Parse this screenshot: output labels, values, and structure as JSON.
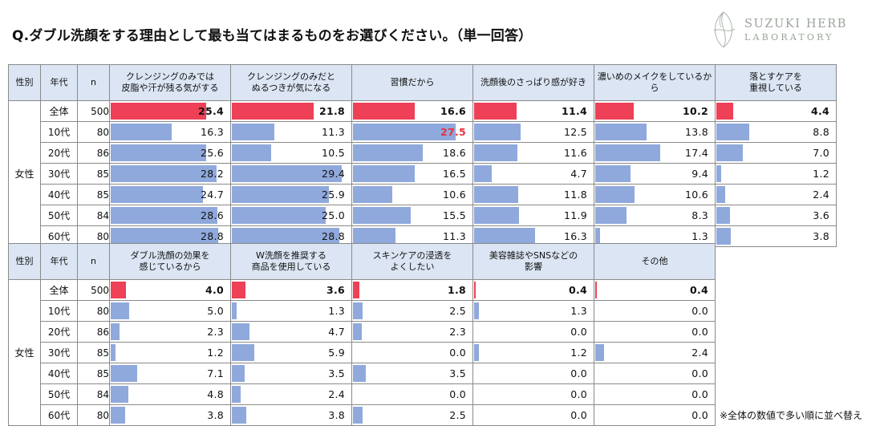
{
  "title": "Q.ダブル洗顔をする理由として最も当てはまるものをお選びください。（単一回答）",
  "logo": {
    "line1": "SUZUKI HERB",
    "line2": "LABORATORY"
  },
  "note": "※全体の数値で多い順に並べ替え",
  "colors": {
    "bar": "#90a9dc",
    "total_bar": "#ee4057",
    "highlight": "#e8303f",
    "header_bg": "#dbe5f3"
  },
  "headers": {
    "sex": "性別",
    "age": "年代",
    "n": "n"
  },
  "group_label": "女性",
  "chart_data": [
    {
      "type": "table",
      "title": "Q.ダブル洗顔をする理由として最も当てはまるものをお選びください。（単一回答）",
      "categories": [
        "全体",
        "10代",
        "20代",
        "30代",
        "40代",
        "50代",
        "60代"
      ],
      "n": [
        500,
        80,
        86,
        85,
        85,
        84,
        80
      ],
      "scale_max": 30,
      "series": [
        {
          "name": "クレンジングのみでは\n皮脂や汗が残る気がする",
          "values": [
            "25.4",
            "16.3",
            "25.6",
            "28.2",
            "24.7",
            "28.6",
            "28.8"
          ]
        },
        {
          "name": "クレンジングのみだと\nぬるつきが気になる",
          "values": [
            "21.8",
            "11.3",
            "10.5",
            "29.4",
            "25.9",
            "25.0",
            "28.8"
          ]
        },
        {
          "name": "習慣だから",
          "values": [
            "16.6",
            "27.5",
            "18.6",
            "16.5",
            "10.6",
            "15.5",
            "11.3"
          ]
        },
        {
          "name": "洗顔後のさっぱり感が好き",
          "values": [
            "11.4",
            "12.5",
            "11.6",
            "4.7",
            "11.8",
            "11.9",
            "16.3"
          ]
        },
        {
          "name": "濃いめのメイクをしているから",
          "values": [
            "10.2",
            "13.8",
            "17.4",
            "9.4",
            "10.6",
            "8.3",
            "1.3"
          ]
        },
        {
          "name": "落とすケアを\n重視している",
          "values": [
            "4.4",
            "8.8",
            "7.0",
            "1.2",
            "2.4",
            "3.6",
            "3.8"
          ]
        }
      ],
      "highlight": {
        "series": 2,
        "row": 1
      }
    },
    {
      "type": "table",
      "categories": [
        "全体",
        "10代",
        "20代",
        "30代",
        "40代",
        "50代",
        "60代"
      ],
      "n": [
        500,
        80,
        86,
        85,
        85,
        84,
        80
      ],
      "scale_max": 30,
      "series": [
        {
          "name": "ダブル洗顔の効果を\n感じているから",
          "values": [
            "4.0",
            "5.0",
            "2.3",
            "1.2",
            "7.1",
            "4.8",
            "3.8"
          ]
        },
        {
          "name": "W洗顔を推奨する\n商品を使用している",
          "values": [
            "3.6",
            "1.3",
            "4.7",
            "5.9",
            "3.5",
            "2.4",
            "3.8"
          ]
        },
        {
          "name": "スキンケアの浸透を\nよくしたい",
          "values": [
            "1.8",
            "2.5",
            "2.3",
            "0.0",
            "3.5",
            "0.0",
            "2.5"
          ]
        },
        {
          "name": "美容雑誌やSNSなどの\n影響",
          "values": [
            "0.4",
            "1.3",
            "0.0",
            "1.2",
            "0.0",
            "0.0",
            "0.0"
          ]
        },
        {
          "name": "その他",
          "values": [
            "0.4",
            "0.0",
            "0.0",
            "2.4",
            "0.0",
            "0.0",
            "0.0"
          ]
        }
      ]
    }
  ]
}
